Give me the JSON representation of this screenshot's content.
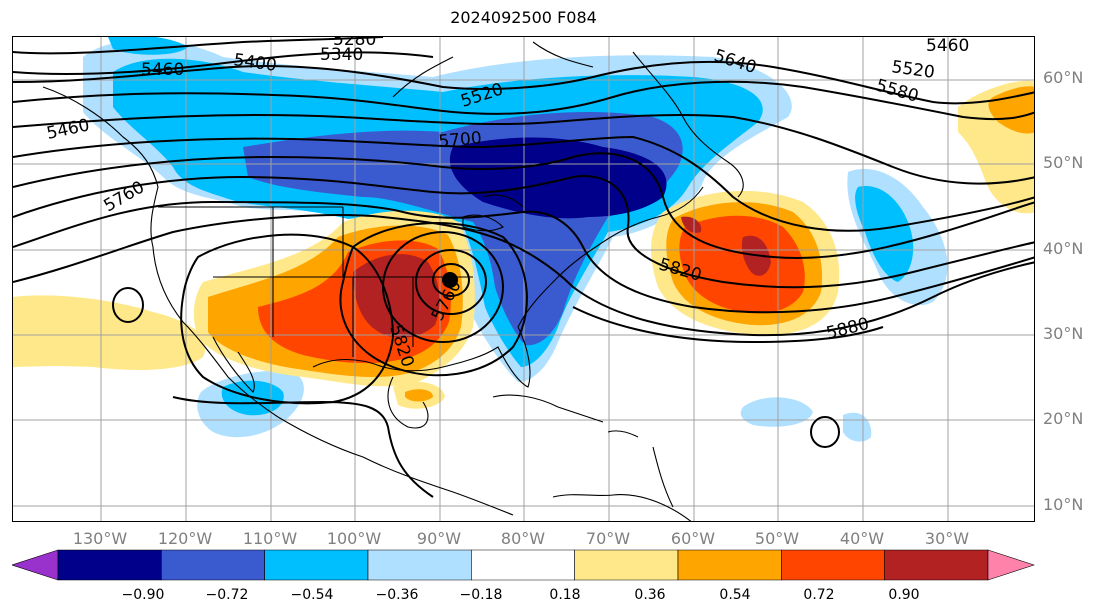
{
  "title": "2024092500 F084",
  "lat_labels": [
    "60°N",
    "50°N",
    "40°N",
    "30°N",
    "20°N",
    "10°N"
  ],
  "lon_labels": [
    "130°W",
    "120°W",
    "110°W",
    "100°W",
    "90°W",
    "80°W",
    "70°W",
    "60°W",
    "50°W",
    "40°W",
    "30°W"
  ],
  "contour_labels": [
    "5280",
    "5340",
    "5400",
    "5460",
    "5460",
    "5520",
    "5580",
    "5640",
    "5700",
    "5520",
    "5460",
    "5760",
    "5820",
    "5760",
    "5820",
    "5880"
  ],
  "colorbar": {
    "ticks": [
      "−0.90",
      "−0.72",
      "−0.54",
      "−0.36",
      "−0.18",
      "0.18",
      "0.36",
      "0.54",
      "0.72",
      "0.90"
    ],
    "colors": [
      "#9932cc",
      "#00008b",
      "#3a5bcf",
      "#00bfff",
      "#b0e0ff",
      "#ffffff",
      "#ffe88a",
      "#ffa500",
      "#ff4500",
      "#b22222",
      "#ff82ab"
    ]
  }
}
